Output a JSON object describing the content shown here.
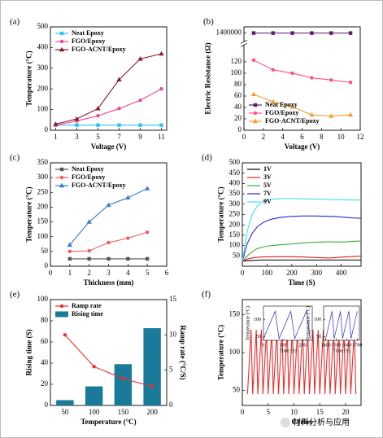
{
  "chart_data": [
    {
      "type": "line",
      "label": "(a)",
      "xlabel": "Voltage (V)",
      "ylabel": "Temperature (°C)",
      "x": [
        1,
        3,
        5,
        7,
        9,
        11
      ],
      "xlim": [
        0.5,
        11.5
      ],
      "xticks": [
        1,
        3,
        5,
        7,
        9,
        11
      ],
      "ylim": [
        0,
        500
      ],
      "yticks": [
        0,
        100,
        200,
        300,
        400,
        500
      ],
      "legend": "upper left",
      "series": [
        {
          "name": "Neat Epoxy",
          "color": "#29c5f6",
          "marker": "square",
          "values": [
            25,
            25,
            25,
            25,
            25,
            25
          ]
        },
        {
          "name": "FGO/Epoxy",
          "color": "#e8489b",
          "marker": "circle",
          "values": [
            25,
            45,
            70,
            105,
            145,
            200
          ]
        },
        {
          "name": "FGO-ACNT/Epoxy",
          "color": "#8b1a2b",
          "marker": "triangle",
          "values": [
            30,
            55,
            105,
            245,
            345,
            370
          ]
        }
      ]
    },
    {
      "type": "line",
      "label": "(b)",
      "xlabel": "Voltage (V)",
      "ylabel": "Electric Resistance (Ω)",
      "x": [
        1,
        3,
        5,
        7,
        9,
        11
      ],
      "xlim": [
        0,
        12
      ],
      "xticks": [
        0,
        2,
        4,
        6,
        8,
        10,
        12
      ],
      "ylim": [
        0,
        145
      ],
      "yticks": [
        0,
        20,
        40,
        60,
        80,
        100,
        120
      ],
      "y_upper_lim": [
        1390000,
        1410000
      ],
      "y_upper_ticks": [
        1400000
      ],
      "legend": "lower left",
      "series": [
        {
          "name": "Neat Epoxy",
          "color": "#5a1a6e",
          "marker": "square",
          "axis": "upper",
          "values": [
            1400000,
            1400000,
            1400000,
            1400000,
            1400000,
            1400000
          ]
        },
        {
          "name": "FGO/Epoxy",
          "color": "#ff4f7b",
          "marker": "circle",
          "values": [
            123,
            106,
            100,
            92,
            88,
            84
          ]
        },
        {
          "name": "FGO-ACNT/Epoxy",
          "color": "#f0a030",
          "marker": "triangle",
          "values": [
            63,
            50,
            41,
            27,
            25,
            27
          ]
        }
      ]
    },
    {
      "type": "line",
      "label": "(c)",
      "xlabel": "Thickness (mm)",
      "ylabel": "Temperature (°C)",
      "x": [
        1,
        2,
        3,
        4,
        5
      ],
      "xlim": [
        0,
        6
      ],
      "xticks": [
        0,
        1,
        2,
        3,
        4,
        5,
        6
      ],
      "ylim": [
        0,
        350
      ],
      "yticks": [
        0,
        50,
        100,
        150,
        200,
        250,
        300,
        350
      ],
      "legend": "upper left",
      "series": [
        {
          "name": "Neat Epoxy",
          "color": "#555555",
          "marker": "square",
          "values": [
            25,
            25,
            25,
            25,
            25
          ]
        },
        {
          "name": "FGO/Epoxy",
          "color": "#f05a5a",
          "marker": "circle",
          "values": [
            50,
            52,
            80,
            95,
            115
          ]
        },
        {
          "name": "FGO-ACNT/Epoxy",
          "color": "#3a7bd5",
          "marker": "triangle",
          "values": [
            72,
            150,
            207,
            232,
            263
          ]
        }
      ]
    },
    {
      "type": "line",
      "label": "(d)",
      "xlabel": "Time (S)",
      "ylabel": "Temperature (°C)",
      "x": [
        0,
        20,
        40,
        60,
        80,
        100,
        120,
        140,
        160,
        180,
        200,
        220,
        240,
        260,
        280,
        300,
        320,
        340,
        360,
        380,
        400,
        420,
        440,
        460,
        480
      ],
      "xlim": [
        0,
        480
      ],
      "xticks": [
        0,
        100,
        200,
        300,
        400
      ],
      "ylim": [
        0,
        500
      ],
      "yticks": [
        50,
        100,
        150,
        200,
        250,
        300,
        350,
        400,
        450,
        500
      ],
      "legend": "upper left",
      "series": [
        {
          "name": "1V",
          "color": "#000000",
          "values": [
            25,
            27,
            28,
            29,
            30,
            30,
            30,
            30,
            30,
            30,
            30,
            30,
            30,
            30,
            30,
            30,
            30,
            30,
            30,
            30,
            30,
            30,
            30,
            30,
            30
          ]
        },
        {
          "name": "3V",
          "color": "#e02020",
          "values": [
            25,
            35,
            40,
            43,
            45,
            45,
            46,
            46,
            46,
            46,
            46,
            45,
            45,
            44,
            43,
            42,
            41,
            40,
            40,
            42,
            44,
            45,
            46,
            48,
            48
          ]
        },
        {
          "name": "5V",
          "color": "#3ab03a",
          "values": [
            25,
            50,
            70,
            85,
            92,
            97,
            100,
            102,
            104,
            106,
            108,
            110,
            112,
            114,
            115,
            116,
            117,
            118,
            118,
            117,
            117,
            118,
            120,
            121,
            122
          ]
        },
        {
          "name": "7V",
          "color": "#2a2ad0",
          "values": [
            25,
            110,
            160,
            190,
            208,
            220,
            228,
            233,
            237,
            239,
            241,
            242,
            243,
            243,
            243,
            243,
            242,
            242,
            241,
            240,
            238,
            236,
            234,
            233,
            232
          ]
        },
        {
          "name": "9V",
          "color": "#3fe0f0",
          "values": [
            25,
            170,
            250,
            290,
            310,
            320,
            324,
            326,
            327,
            327,
            327,
            326,
            326,
            325,
            325,
            325,
            324,
            323,
            322,
            322,
            321,
            321,
            320,
            320,
            320
          ]
        }
      ]
    },
    {
      "type": "bar",
      "label": "(e)",
      "xlabel": "Temperature (°C)",
      "ylabel": "Rising time (S)",
      "y2label": "Ramp rate (°C/S)",
      "categories": [
        50,
        100,
        150,
        200
      ],
      "ylim": [
        0,
        100
      ],
      "yticks": [
        0,
        20,
        40,
        60,
        80,
        100
      ],
      "y2lim": [
        0,
        15
      ],
      "y2ticks": [
        0,
        5,
        10,
        15
      ],
      "legend": "upper left",
      "series": [
        {
          "name": "Ramp rate",
          "type": "line",
          "axis": "y2",
          "color": "#e8302a",
          "marker": "circle",
          "values": [
            10,
            5.5,
            3.8,
            2.7
          ]
        },
        {
          "name": "Rising time",
          "type": "bar",
          "color": "#1a7a9a",
          "values": [
            5,
            18,
            39,
            73
          ]
        }
      ]
    },
    {
      "type": "line",
      "label": "(f)",
      "xlabel": "Cycles",
      "ylabel": "Temperature (°C)",
      "x": [
        1,
        1.7,
        2,
        2.7,
        3,
        3.7,
        4,
        4.7,
        5,
        5.7,
        6,
        6.7,
        7,
        7.7,
        8,
        8.7,
        9,
        9.7,
        10,
        10.7,
        11,
        11.7,
        12,
        12.7,
        13,
        13.7,
        14,
        14.7,
        15,
        15.7,
        16,
        16.7,
        17,
        17.7,
        18,
        18.7,
        19,
        19.7,
        20,
        20.7,
        21,
        21.7,
        22
      ],
      "xlim": [
        0,
        23
      ],
      "xticks": [
        0,
        5,
        10,
        15,
        20
      ],
      "ylim": [
        30,
        170
      ],
      "yticks": [
        50,
        100,
        150
      ],
      "series": [
        {
          "color": "#e83030",
          "values": [
            45,
            130,
            45,
            130,
            45,
            130,
            45,
            130,
            45,
            130,
            45,
            130,
            45,
            130,
            45,
            130,
            45,
            130,
            45,
            130,
            45,
            130,
            45,
            130,
            45,
            130,
            45,
            130,
            45,
            130,
            45,
            130,
            45,
            130,
            45,
            130,
            45,
            130,
            45,
            130,
            45,
            130,
            45
          ]
        }
      ]
    },
    {
      "type": "line",
      "xlabel": "Time (S)",
      "ylabel": "Temperature (°C)",
      "x": [
        0,
        60,
        80,
        140,
        160,
        220,
        240
      ],
      "xlim": [
        0,
        250
      ],
      "xticks": [
        0,
        100,
        200
      ],
      "ylim": [
        40,
        140
      ],
      "yticks": [
        50,
        100
      ],
      "series": [
        {
          "color": "#2a2ad0",
          "values": [
            45,
            125,
            45,
            125,
            45,
            125,
            45
          ]
        }
      ]
    },
    {
      "type": "line",
      "xlabel": "Time (S)",
      "ylabel": "Temperature (°C)",
      "x": [
        1400,
        1460,
        1480,
        1540,
        1560,
        1620,
        1640,
        1700
      ],
      "xlim": [
        1380,
        1720
      ],
      "xticks": [
        1400,
        1500,
        1600,
        1700
      ],
      "ylim": [
        40,
        140
      ],
      "yticks": [
        50,
        100
      ],
      "series": [
        {
          "color": "#2a2ad0",
          "values": [
            45,
            125,
            45,
            125,
            45,
            125,
            45,
            125
          ]
        }
      ]
    }
  ],
  "watermark": "材料分析与应用"
}
